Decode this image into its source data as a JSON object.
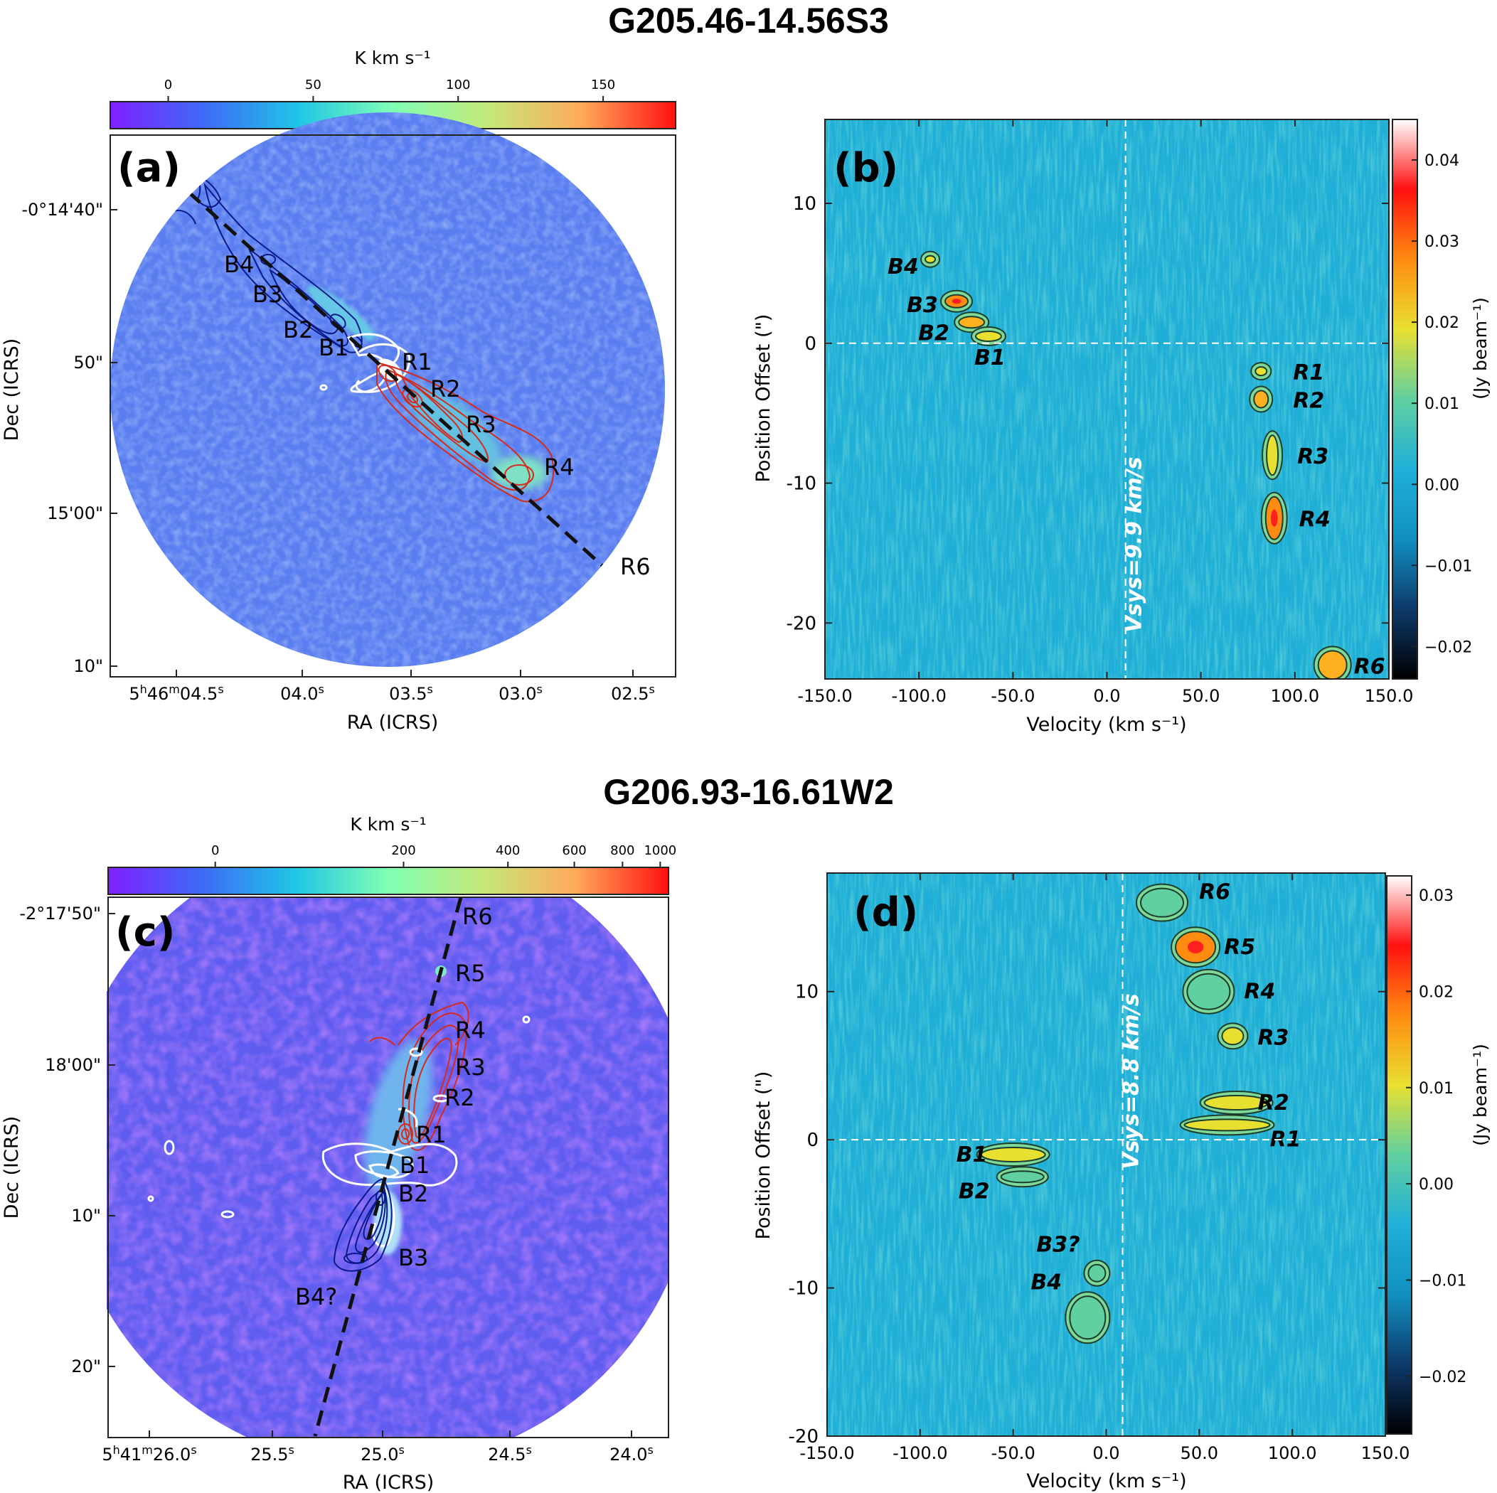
{
  "titles": {
    "top": "G205.46-14.56S3",
    "bottom": "G206.93-16.61W2"
  },
  "colors": {
    "map_bg": "#5a7ef0",
    "pv_bg": "#1faed6",
    "red_contour": "#d42b1c",
    "blue_contour": "#0a1a8a",
    "white_contour": "#ffffff",
    "axis_line": "#222222",
    "colormap_rainbow": [
      "#7f1fff",
      "#3e6af7",
      "#1fc6e6",
      "#80ffb4",
      "#c4e97a",
      "#ffaa5a",
      "#ff1010"
    ],
    "colormap_pv": [
      "#000000",
      "#0d3a6b",
      "#1190c0",
      "#1fb0d8",
      "#60d0a0",
      "#e8e030",
      "#ff8c10",
      "#ff1010",
      "#ffffff"
    ]
  },
  "chart_data": [
    {
      "type": "heatmap",
      "panel_label": "(a)",
      "subtitle": "",
      "xlabel": "RA (ICRS)",
      "ylabel": "Dec (ICRS)",
      "x_ticks": [
        "5h46m04.5s",
        "04.0s",
        "03.5s",
        "03.0s",
        "02.5s"
      ],
      "x_tick_parts": [
        {
          "base": "5",
          "sup1": "h",
          "mid": "46",
          "sup2": "m",
          "main": "04.5",
          "sup3": "s"
        },
        {
          "main": "04.0",
          "sup3": "s"
        },
        {
          "main": "03.5",
          "sup3": "s"
        },
        {
          "main": "03.0",
          "sup3": "s"
        },
        {
          "main": "02.5",
          "sup3": "s"
        }
      ],
      "y_ticks": [
        "-0°14'40\"",
        "50\"",
        "15'00\"",
        "10\""
      ],
      "colorbar": {
        "label": "K km s⁻¹",
        "ticks": [
          "0",
          "50",
          "100",
          "150"
        ],
        "range": [
          -20,
          175
        ]
      },
      "knot_labels": [
        "B4",
        "B3",
        "B2",
        "B1",
        "R1",
        "R2",
        "R3",
        "R4",
        "R6"
      ],
      "outflow_axis": "dashed black line"
    },
    {
      "type": "heatmap",
      "panel_label": "(b)",
      "xlabel": "Velocity (km s⁻¹)",
      "ylabel": "Position Offset (\")",
      "x_ticks": [
        "-150.0",
        "-100.0",
        "-50.0",
        "0.0",
        "50.0",
        "100.0",
        "150.0"
      ],
      "xlim": [
        -150,
        150
      ],
      "y_ticks": [
        "10",
        "0",
        "-10",
        "-20"
      ],
      "ylim": [
        -24,
        16
      ],
      "vsys_label": "Vsys=9.9 km/s",
      "vsys": 9.9,
      "colorbar": {
        "label": "(Jy beam⁻¹)",
        "ticks": [
          "0.04",
          "0.03",
          "0.02",
          "0.01",
          "0.00",
          "−0.01",
          "−0.02"
        ],
        "range": [
          -0.024,
          0.045
        ]
      },
      "features": [
        {
          "label": "B4",
          "velocity": -94,
          "offset": 6
        },
        {
          "label": "B3",
          "velocity": -80,
          "offset": 3
        },
        {
          "label": "B2",
          "velocity": -72,
          "offset": 1.5
        },
        {
          "label": "B1",
          "velocity": -63,
          "offset": 0.5
        },
        {
          "label": "R1",
          "velocity": 82,
          "offset": -2
        },
        {
          "label": "R2",
          "velocity": 82,
          "offset": -4
        },
        {
          "label": "R3",
          "velocity": 88,
          "offset": -8
        },
        {
          "label": "R4",
          "velocity": 89,
          "offset": -12.5
        },
        {
          "label": "R6",
          "velocity": 120,
          "offset": -23
        }
      ]
    },
    {
      "type": "heatmap",
      "panel_label": "(c)",
      "xlabel": "RA (ICRS)",
      "ylabel": "Dec (ICRS)",
      "x_ticks": [
        "5h41m26.0s",
        "25.5s",
        "25.0s",
        "24.5s",
        "24.0s"
      ],
      "x_tick_parts": [
        {
          "base": "5",
          "sup1": "h",
          "mid": "41",
          "sup2": "m",
          "main": "26.0",
          "sup3": "s"
        },
        {
          "main": "25.5",
          "sup3": "s"
        },
        {
          "main": "25.0",
          "sup3": "s"
        },
        {
          "main": "24.5",
          "sup3": "s"
        },
        {
          "main": "24.0",
          "sup3": "s"
        }
      ],
      "y_ticks": [
        "-2°17'50\"",
        "18'00\"",
        "10\"",
        "20\""
      ],
      "colorbar": {
        "label": "K km s⁻¹",
        "ticks": [
          "0",
          "200",
          "400",
          "600",
          "800",
          "1000"
        ],
        "range": [
          -100,
          1050
        ]
      },
      "knot_labels": [
        "R6",
        "R5",
        "R4",
        "R3",
        "R2",
        "R1",
        "B1",
        "B2",
        "B3",
        "B4?"
      ],
      "outflow_axis": "dashed black line"
    },
    {
      "type": "heatmap",
      "panel_label": "(d)",
      "xlabel": "Velocity (km s⁻¹)",
      "ylabel": "Position Offset (\")",
      "x_ticks": [
        "-150.0",
        "-100.0",
        "-50.0",
        "0.0",
        "50.0",
        "100.0",
        "150.0"
      ],
      "xlim": [
        -150,
        150
      ],
      "y_ticks": [
        "10",
        "0",
        "-10",
        "-20"
      ],
      "ylim": [
        -20,
        18
      ],
      "vsys_label": "Vsys=8.8 km/s",
      "vsys": 8.8,
      "colorbar": {
        "label": "(Jy beam⁻¹)",
        "ticks": [
          "0.03",
          "0.02",
          "0.01",
          "0.00",
          "−0.01",
          "−0.02"
        ],
        "range": [
          -0.026,
          0.032
        ]
      },
      "features": [
        {
          "label": "R6",
          "velocity": 30,
          "offset": 16
        },
        {
          "label": "R5",
          "velocity": 48,
          "offset": 13
        },
        {
          "label": "R4",
          "velocity": 55,
          "offset": 10
        },
        {
          "label": "R3",
          "velocity": 68,
          "offset": 7
        },
        {
          "label": "R2",
          "velocity": 70,
          "offset": 2.5
        },
        {
          "label": "R1",
          "velocity": 65,
          "offset": 1
        },
        {
          "label": "B1",
          "velocity": -50,
          "offset": -1
        },
        {
          "label": "B2",
          "velocity": -45,
          "offset": -2.5
        },
        {
          "label": "B3?",
          "velocity": -5,
          "offset": -9
        },
        {
          "label": "B4",
          "velocity": -10,
          "offset": -12
        }
      ]
    }
  ]
}
